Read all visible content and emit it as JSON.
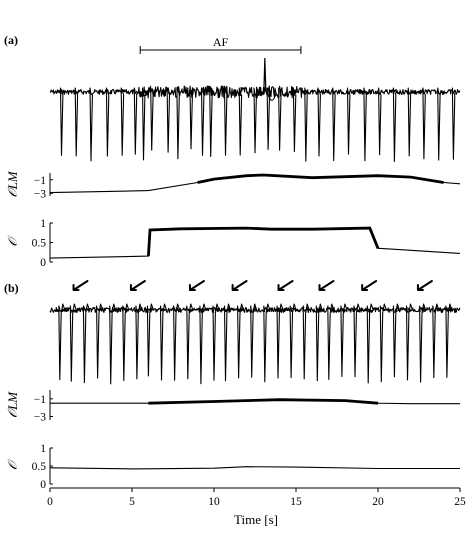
{
  "chart_data": {
    "type": "line",
    "figure": {
      "xlabel": "Time [s]",
      "xlim": [
        0,
        25
      ],
      "xticks": [
        0,
        5,
        10,
        15,
        20,
        25
      ]
    },
    "panels": [
      {
        "label": "(a)",
        "annotation": {
          "text": "AF",
          "span": [
            5.5,
            15.3
          ]
        },
        "ecg": {
          "type": "ecg",
          "beats": [
            0.7,
            1.6,
            2.5,
            3.5,
            4.4,
            5.2,
            5.7,
            6.2,
            7.2,
            7.8,
            8.6,
            9.3,
            9.8,
            10.7,
            11.6,
            12.5,
            13.3,
            14.0,
            14.9,
            15.6,
            16.4,
            17.3,
            18.2,
            19.2,
            20.1,
            21.0,
            21.9,
            22.8,
            23.7,
            24.6
          ],
          "events": [
            {
              "kind": "spike",
              "x": 13.1
            },
            {
              "kind": "dip",
              "x": 13.5
            }
          ]
        },
        "olm": {
          "ylabel": "𝒪LM",
          "ylim": [
            -3.4,
            0
          ],
          "yticks": [
            -1,
            -3
          ],
          "points": [
            [
              0,
              -2.9
            ],
            [
              6,
              -2.6
            ],
            [
              9,
              -1.4
            ],
            [
              10,
              -0.9
            ],
            [
              12,
              -0.4
            ],
            [
              13,
              -0.3
            ],
            [
              16,
              -0.7
            ],
            [
              20,
              -0.4
            ],
            [
              22,
              -0.6
            ],
            [
              24,
              -1.4
            ],
            [
              25,
              -1.6
            ]
          ],
          "bold_range": [
            9,
            24
          ]
        },
        "o": {
          "ylabel": "𝒪",
          "ylim": [
            0,
            1
          ],
          "yticks": [
            1,
            0.5,
            0
          ],
          "points": [
            [
              0,
              0.1
            ],
            [
              6,
              0.15
            ],
            [
              6.1,
              0.82
            ],
            [
              8,
              0.85
            ],
            [
              12,
              0.87
            ],
            [
              13.5,
              0.84
            ],
            [
              16,
              0.84
            ],
            [
              19.5,
              0.87
            ],
            [
              20,
              0.35
            ],
            [
              22,
              0.3
            ],
            [
              25,
              0.22
            ]
          ],
          "bold_range": [
            6,
            20
          ]
        }
      },
      {
        "label": "(b)",
        "annotation": {
          "text": "",
          "arrows_at": [
            1.8,
            5.3,
            8.9,
            11.5,
            14.3,
            16.8,
            19.4,
            22.8
          ]
        },
        "ecg": {
          "type": "ecg",
          "beats": [
            0.6,
            1.3,
            2.1,
            2.9,
            3.7,
            4.5,
            5.3,
            6.0,
            6.8,
            7.6,
            8.4,
            9.2,
            10.0,
            10.7,
            11.5,
            12.3,
            13.1,
            13.9,
            14.7,
            15.5,
            16.3,
            17.0,
            17.8,
            18.6,
            19.4,
            20.2,
            21.0,
            21.8,
            22.6,
            23.4,
            24.2
          ],
          "events": []
        },
        "olm": {
          "ylabel": "𝒪LM",
          "ylim": [
            -3.4,
            0
          ],
          "yticks": [
            -1,
            -3
          ],
          "points": [
            [
              0,
              -1.5
            ],
            [
              6,
              -1.5
            ],
            [
              10,
              -1.3
            ],
            [
              14,
              -1.1
            ],
            [
              18,
              -1.2
            ],
            [
              20,
              -1.5
            ],
            [
              22,
              -1.55
            ],
            [
              25,
              -1.55
            ]
          ],
          "bold_range": [
            6,
            21
          ]
        },
        "o": {
          "ylabel": "𝒪",
          "ylim": [
            0,
            1
          ],
          "yticks": [
            1,
            0.5,
            0
          ],
          "points": [
            [
              0,
              0.45
            ],
            [
              5,
              0.42
            ],
            [
              10,
              0.44
            ],
            [
              12,
              0.48
            ],
            [
              15,
              0.47
            ],
            [
              20,
              0.43
            ],
            [
              25,
              0.43
            ]
          ],
          "bold_range": null
        }
      }
    ]
  }
}
